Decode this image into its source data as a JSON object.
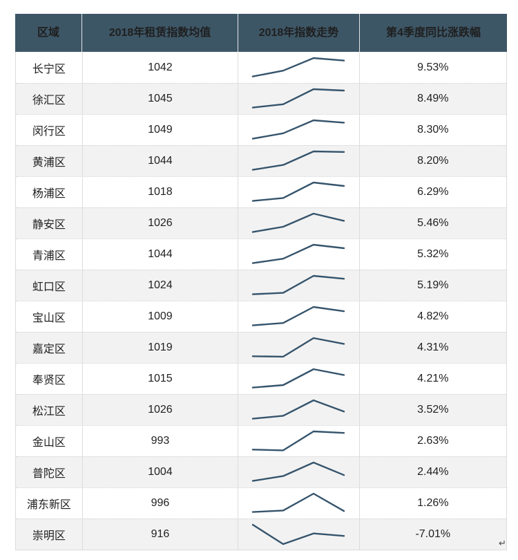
{
  "colors": {
    "header_bg": "#3d5666",
    "header_text": "#ffffff",
    "row_bg": "#ffffff",
    "row_alt_bg": "#f2f2f2",
    "sparkline": "#35546c",
    "body_text": "#1f1f1f",
    "border": "#dcdcdc"
  },
  "paragraph_mark": "↵",
  "chart_data": {
    "type": "table",
    "columns": [
      "区域",
      "2018年租赁指数均值",
      "2018年指数走势",
      "第4季度同比涨跌幅"
    ],
    "sparkline_type": "line",
    "rows": [
      {
        "region": "长宁区",
        "mean_2018": "1042",
        "trend_points": [
          0.05,
          0.35,
          1.0,
          0.87
        ],
        "q4_yoy_change": "9.53%"
      },
      {
        "region": "徐汇区",
        "mean_2018": "1045",
        "trend_points": [
          0.05,
          0.22,
          1.0,
          0.93
        ],
        "q4_yoy_change": "8.49%"
      },
      {
        "region": "闵行区",
        "mean_2018": "1049",
        "trend_points": [
          0.05,
          0.33,
          1.0,
          0.88
        ],
        "q4_yoy_change": "8.30%"
      },
      {
        "region": "黄浦区",
        "mean_2018": "1044",
        "trend_points": [
          0.05,
          0.3,
          1.0,
          0.97
        ],
        "q4_yoy_change": "8.20%"
      },
      {
        "region": "杨浦区",
        "mean_2018": "1018",
        "trend_points": [
          0.05,
          0.2,
          1.0,
          0.82
        ],
        "q4_yoy_change": "6.29%"
      },
      {
        "region": "静安区",
        "mean_2018": "1026",
        "trend_points": [
          0.05,
          0.32,
          1.0,
          0.63
        ],
        "q4_yoy_change": "5.46%"
      },
      {
        "region": "青浦区",
        "mean_2018": "1044",
        "trend_points": [
          0.05,
          0.28,
          1.0,
          0.82
        ],
        "q4_yoy_change": "5.32%"
      },
      {
        "region": "虹口区",
        "mean_2018": "1024",
        "trend_points": [
          0.05,
          0.12,
          1.0,
          0.85
        ],
        "q4_yoy_change": "5.19%"
      },
      {
        "region": "宝山区",
        "mean_2018": "1009",
        "trend_points": [
          0.05,
          0.17,
          1.0,
          0.78
        ],
        "q4_yoy_change": "4.82%"
      },
      {
        "region": "嘉定区",
        "mean_2018": "1019",
        "trend_points": [
          0.06,
          0.04,
          1.0,
          0.7
        ],
        "q4_yoy_change": "4.31%"
      },
      {
        "region": "奉贤区",
        "mean_2018": "1015",
        "trend_points": [
          0.05,
          0.18,
          1.0,
          0.7
        ],
        "q4_yoy_change": "4.21%"
      },
      {
        "region": "松江区",
        "mean_2018": "1026",
        "trend_points": [
          0.05,
          0.2,
          1.0,
          0.42
        ],
        "q4_yoy_change": "3.52%"
      },
      {
        "region": "金山区",
        "mean_2018": "993",
        "trend_points": [
          0.06,
          0.02,
          1.0,
          0.92
        ],
        "q4_yoy_change": "2.63%"
      },
      {
        "region": "普陀区",
        "mean_2018": "1004",
        "trend_points": [
          0.05,
          0.3,
          1.0,
          0.35
        ],
        "q4_yoy_change": "2.44%"
      },
      {
        "region": "浦东新区",
        "mean_2018": "996",
        "trend_points": [
          0.05,
          0.13,
          1.0,
          0.1
        ],
        "q4_yoy_change": "1.26%"
      },
      {
        "region": "崇明区",
        "mean_2018": "916",
        "trend_points": [
          1.0,
          0.0,
          0.55,
          0.42
        ],
        "q4_yoy_change": "-7.01%"
      }
    ]
  }
}
